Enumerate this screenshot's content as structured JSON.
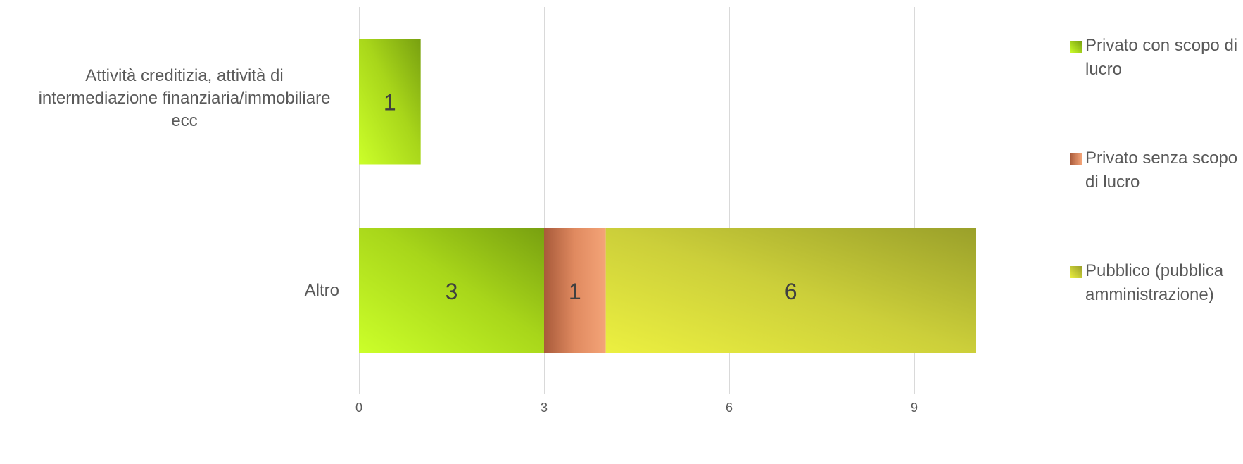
{
  "chart_data": {
    "type": "bar",
    "orientation": "horizontal",
    "stacked": true,
    "categories": [
      "Attività creditizia, attività di intermediazione finanziaria/immobiliare ecc",
      "Altro"
    ],
    "series": [
      {
        "name": "Privato con scopo di lucro",
        "values": [
          1,
          3
        ],
        "color": "#99cc00"
      },
      {
        "name": "Privato senza scopo di lucro",
        "values": [
          null,
          1
        ],
        "color": "#e08050"
      },
      {
        "name": "Pubblico (pubblica amministrazione)",
        "values": [
          null,
          6
        ],
        "color": "#c8c830"
      }
    ],
    "xlim": [
      0,
      9
    ],
    "xticks": [
      0,
      3,
      6,
      9
    ],
    "grid": true,
    "legend_position": "right",
    "title": "",
    "xlabel": "",
    "ylabel": ""
  }
}
